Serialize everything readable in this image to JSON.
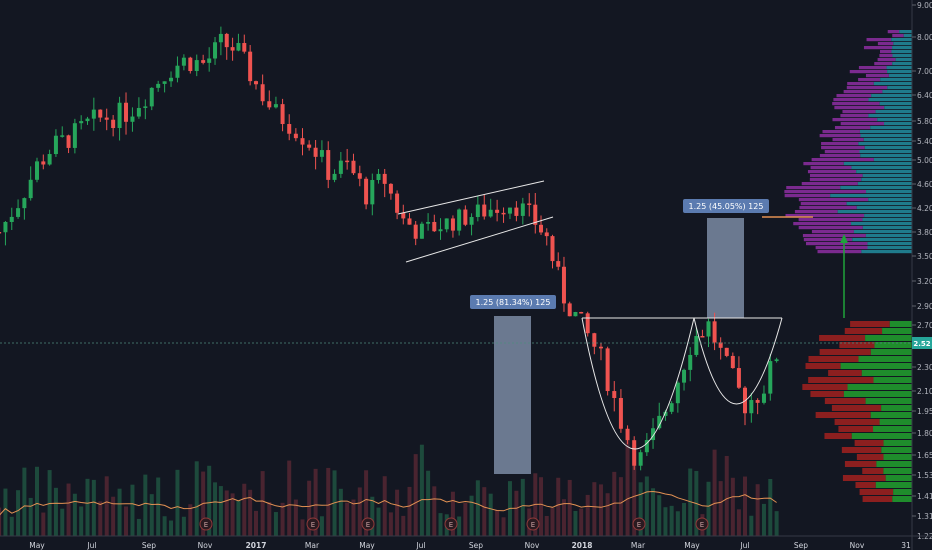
{
  "chart_data": {
    "type": "candlestick",
    "price_axis": {
      "ticks": [
        "9.00",
        "8.00",
        "7.00",
        "6.40",
        "5.80",
        "5.40",
        "5.00",
        "4.60",
        "4.20",
        "3.80",
        "3.50",
        "3.20",
        "2.90",
        "2.70",
        "2.30",
        "2.10",
        "1.95",
        "1.80",
        "1.65",
        "1.53",
        "1.41",
        "1.31",
        "1.22"
      ],
      "scale": "log",
      "range": [
        1.2,
        9.2
      ],
      "current_price": "2.52"
    },
    "time_axis": {
      "ticks": [
        "May",
        "Jul",
        "Sep",
        "Nov",
        "2017",
        "Mar",
        "May",
        "Jul",
        "Sep",
        "Nov",
        "2018",
        "Mar",
        "May",
        "Jul",
        "Sep",
        "Nov",
        "31"
      ]
    },
    "annotations": {
      "measure1_label": "1.25 (81.34%) 125",
      "measure2_label": "1.25 (45.05%) 125",
      "earnings_marker": "E"
    },
    "series_close_path": [
      [
        "2016-03-20",
        3.8
      ],
      [
        "2016-04-10",
        4.3
      ],
      [
        "2016-05-01",
        4.9
      ],
      [
        "2016-05-20",
        5.3
      ],
      [
        "2016-06-10",
        5.5
      ],
      [
        "2016-07-01",
        5.8
      ],
      [
        "2016-07-20",
        5.9
      ],
      [
        "2016-08-10",
        6.0
      ],
      [
        "2016-09-01",
        6.5
      ],
      [
        "2016-09-20",
        7.0
      ],
      [
        "2016-10-10",
        7.3
      ],
      [
        "2016-11-01",
        7.2
      ],
      [
        "2016-11-20",
        7.8
      ],
      [
        "2016-12-10",
        7.6
      ],
      [
        "2016-12-28",
        6.8
      ],
      [
        "2017-01-20",
        6.0
      ],
      [
        "2017-02-10",
        5.7
      ],
      [
        "2017-03-01",
        5.3
      ],
      [
        "2017-03-20",
        4.8
      ],
      [
        "2017-04-10",
        4.9
      ],
      [
        "2017-05-01",
        4.4
      ],
      [
        "2017-05-20",
        4.7
      ],
      [
        "2017-06-10",
        4.0
      ],
      [
        "2017-07-01",
        3.8
      ],
      [
        "2017-07-20",
        3.9
      ],
      [
        "2017-08-10",
        4.0
      ],
      [
        "2017-09-01",
        4.1
      ],
      [
        "2017-09-20",
        4.2
      ],
      [
        "2017-10-10",
        4.3
      ],
      [
        "2017-10-28",
        4.1
      ],
      [
        "2017-11-20",
        3.7
      ],
      [
        "2017-12-10",
        3.0
      ],
      [
        "2017-12-31",
        2.7
      ],
      [
        "2018-01-20",
        2.4
      ],
      [
        "2018-02-10",
        1.9
      ],
      [
        "2018-03-01",
        1.6
      ],
      [
        "2018-03-20",
        1.8
      ],
      [
        "2018-04-10",
        2.1
      ],
      [
        "2018-05-01",
        2.55
      ],
      [
        "2018-05-20",
        2.7
      ],
      [
        "2018-06-10",
        2.3
      ],
      [
        "2018-07-01",
        2.0
      ],
      [
        "2018-07-20",
        2.1
      ],
      [
        "2018-08-10",
        2.52
      ]
    ],
    "volume_profile": "purple/teal upper profile, red/green lower profile",
    "legend": "none",
    "grid": false
  }
}
